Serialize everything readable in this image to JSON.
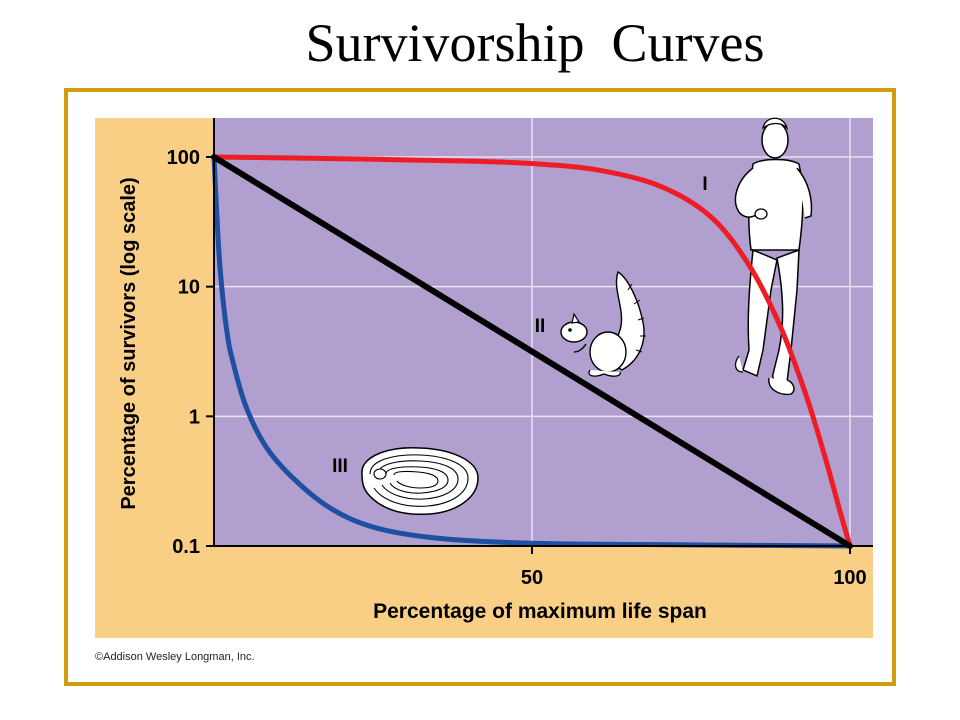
{
  "slide": {
    "title": "Survivorship  Curves",
    "credit": "©Addison Wesley Longman, Inc."
  },
  "colors": {
    "frame_border": "#d29c10",
    "panel_background": "#f9cf86",
    "plot_background": "#b19fcf",
    "grid": "#e8e2f2",
    "type_I": "#ee1c24",
    "type_II": "#000000",
    "type_III": "#1f4fa3"
  },
  "chart_data": {
    "type": "line",
    "title": "",
    "xlabel": "Percentage of maximum life span",
    "ylabel": "Percentage of survivors (log scale)",
    "xlim": [
      0,
      100
    ],
    "ylim": [
      0.1,
      100
    ],
    "yscale": "log",
    "grid": true,
    "x_ticks": [
      {
        "value": 50,
        "label": "50"
      },
      {
        "value": 100,
        "label": "100"
      }
    ],
    "y_ticks": [
      {
        "value": 100,
        "label": "100"
      },
      {
        "value": 10,
        "label": "10"
      },
      {
        "value": 1,
        "label": "1"
      },
      {
        "value": 0.1,
        "label": "0.1"
      }
    ],
    "series": [
      {
        "name": "I",
        "color": "#ee1c24",
        "points": [
          [
            0,
            100
          ],
          [
            20,
            97
          ],
          [
            40,
            93
          ],
          [
            50,
            89
          ],
          [
            60,
            80
          ],
          [
            70,
            60
          ],
          [
            78,
            35
          ],
          [
            84,
            15
          ],
          [
            89,
            5
          ],
          [
            93,
            1.5
          ],
          [
            96,
            0.5
          ],
          [
            98.5,
            0.18
          ],
          [
            100,
            0.1
          ]
        ]
      },
      {
        "name": "II",
        "color": "#000000",
        "points": [
          [
            0,
            100
          ],
          [
            100,
            0.1
          ]
        ]
      },
      {
        "name": "III",
        "color": "#1f4fa3",
        "points": [
          [
            0,
            100
          ],
          [
            0.5,
            32
          ],
          [
            1,
            13
          ],
          [
            2,
            4.6
          ],
          [
            3,
            2.6
          ],
          [
            5,
            1.2
          ],
          [
            8,
            0.6
          ],
          [
            12,
            0.35
          ],
          [
            18,
            0.2
          ],
          [
            25,
            0.14
          ],
          [
            35,
            0.115
          ],
          [
            50,
            0.105
          ],
          [
            75,
            0.102
          ],
          [
            100,
            0.1
          ]
        ]
      }
    ],
    "illustrations": [
      {
        "series": "I",
        "label": "I",
        "icon": "human-runner-icon"
      },
      {
        "series": "II",
        "label": "II",
        "icon": "squirrel-icon"
      },
      {
        "series": "III",
        "label": "III",
        "icon": "oyster-icon"
      }
    ]
  }
}
